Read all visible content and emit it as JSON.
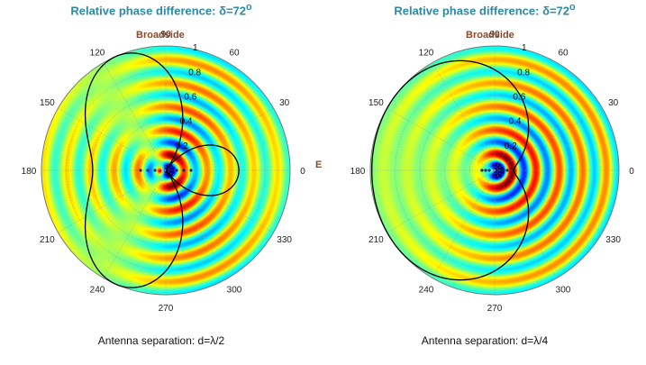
{
  "colors": {
    "title": "#2b8aa6",
    "annotation": "#8a4a2a",
    "pattern_line": "#000000",
    "grid": "#9a9a9a"
  },
  "panels": [
    {
      "id": "left",
      "title_prefix": "Relative phase difference: ",
      "title_symbol": "δ=72",
      "title_sup": "o",
      "caption": "Antenna separation: d=λ/2",
      "broadside_label": "Broadside",
      "endfire_label": "Endfire",
      "angle_labels": [
        "0",
        "30",
        "60",
        "90",
        "120",
        "150",
        "180",
        "210",
        "240",
        "270",
        "300",
        "330"
      ],
      "radial_labels": [
        "0.2",
        "0.4",
        "0.6",
        "0.8",
        "1"
      ],
      "spacing_wavelengths": 0.5,
      "phase_deg": 72
    },
    {
      "id": "right",
      "title_prefix": "Relative phase difference: ",
      "title_symbol": "δ=72",
      "title_sup": "o",
      "caption": "Antenna separation: d=λ/4",
      "broadside_label": "Broadside",
      "endfire_label": "",
      "angle_labels": [
        "0",
        "30",
        "60",
        "90",
        "120",
        "150",
        "180",
        "210",
        "240",
        "270",
        "300",
        "330"
      ],
      "radial_labels": [
        "0.2",
        "0.4",
        "0.6",
        "0.8",
        "1"
      ],
      "spacing_wavelengths": 0.25,
      "phase_deg": 72
    }
  ]
}
